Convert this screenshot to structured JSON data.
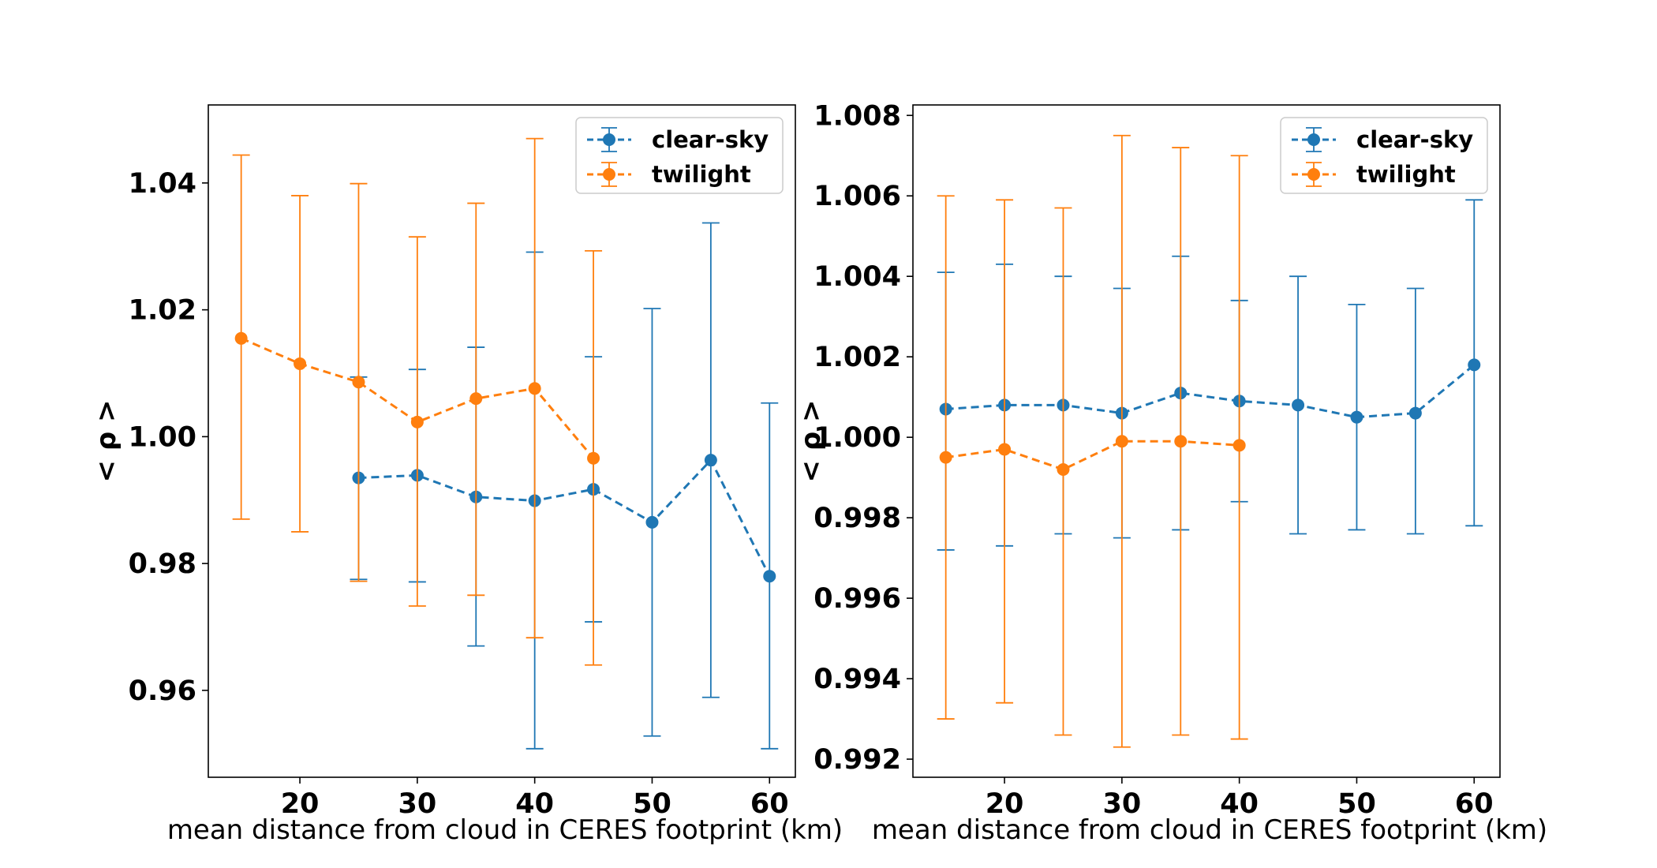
{
  "chart_data": [
    {
      "type": "line",
      "xlabel": "mean distance from cloud in CERES footprint (km)",
      "ylabel": "< ρ >",
      "xlim": [
        12.2,
        62.2
      ],
      "ylim": [
        0.9463,
        1.0523
      ],
      "xticks": [
        20,
        30,
        40,
        50,
        60
      ],
      "yticks": [
        0.96,
        0.98,
        1.0,
        1.02,
        1.04
      ],
      "ytick_labels": [
        "0.96",
        "0.98",
        "1.00",
        "1.02",
        "1.04"
      ],
      "grid": false,
      "legend_position": "upper right",
      "series": [
        {
          "name": "clear-sky",
          "color": "#1f77b4",
          "x": [
            25,
            30,
            35,
            40,
            45,
            50,
            55,
            60
          ],
          "y": [
            0.9935,
            0.9939,
            0.9905,
            0.9899,
            0.9917,
            0.9865,
            0.9963,
            0.978
          ],
          "yerr_low": [
            0.9775,
            0.9771,
            0.967,
            0.9508,
            0.9708,
            0.9528,
            0.9589,
            0.9508
          ],
          "yerr_high": [
            1.0094,
            1.0106,
            1.0141,
            1.0291,
            1.0126,
            1.0202,
            1.0337,
            1.0053
          ]
        },
        {
          "name": "twilight",
          "color": "#ff7f0e",
          "x": [
            15,
            20,
            25,
            30,
            35,
            40,
            45
          ],
          "y": [
            1.0155,
            1.0115,
            1.0086,
            1.0023,
            1.006,
            1.0076,
            0.9966
          ],
          "yerr_low": [
            0.987,
            0.985,
            0.9772,
            0.9733,
            0.975,
            0.9683,
            0.964
          ],
          "yerr_high": [
            1.0444,
            1.038,
            1.0399,
            1.0315,
            1.0368,
            1.047,
            1.0293
          ]
        }
      ]
    },
    {
      "type": "line",
      "xlabel": "mean distance from cloud in CERES footprint (km)",
      "ylabel": "< ρ >",
      "xlim": [
        12.2,
        62.2
      ],
      "ylim": [
        0.99155,
        1.00826
      ],
      "xticks": [
        20,
        30,
        40,
        50,
        60
      ],
      "yticks": [
        0.992,
        0.994,
        0.996,
        0.998,
        1.0,
        1.002,
        1.004,
        1.006,
        1.008
      ],
      "ytick_labels": [
        "0.992",
        "0.994",
        "0.996",
        "0.998",
        "1.000",
        "1.002",
        "1.004",
        "1.006",
        "1.008"
      ],
      "grid": false,
      "legend_position": "upper right",
      "series": [
        {
          "name": "clear-sky",
          "color": "#1f77b4",
          "x": [
            15,
            20,
            25,
            30,
            35,
            40,
            45,
            50,
            55,
            60
          ],
          "y": [
            1.0007,
            1.0008,
            1.0008,
            1.0006,
            1.0011,
            1.0009,
            1.0008,
            1.0005,
            1.0006,
            1.0018
          ],
          "yerr_low": [
            0.9972,
            0.9973,
            0.9976,
            0.9975,
            0.9977,
            0.9984,
            0.9976,
            0.9977,
            0.9976,
            0.9978
          ],
          "yerr_high": [
            1.0041,
            1.0043,
            1.004,
            1.0037,
            1.0045,
            1.0034,
            1.004,
            1.0033,
            1.0037,
            1.0059
          ]
        },
        {
          "name": "twilight",
          "color": "#ff7f0e",
          "x": [
            15,
            20,
            25,
            30,
            35,
            40
          ],
          "y": [
            0.9995,
            0.9997,
            0.9992,
            0.9999,
            0.9999,
            0.9998
          ],
          "yerr_low": [
            0.993,
            0.9934,
            0.9926,
            0.9923,
            0.9926,
            0.9925
          ],
          "yerr_high": [
            1.006,
            1.0059,
            1.0057,
            1.0075,
            1.0072,
            1.007
          ]
        }
      ]
    }
  ]
}
